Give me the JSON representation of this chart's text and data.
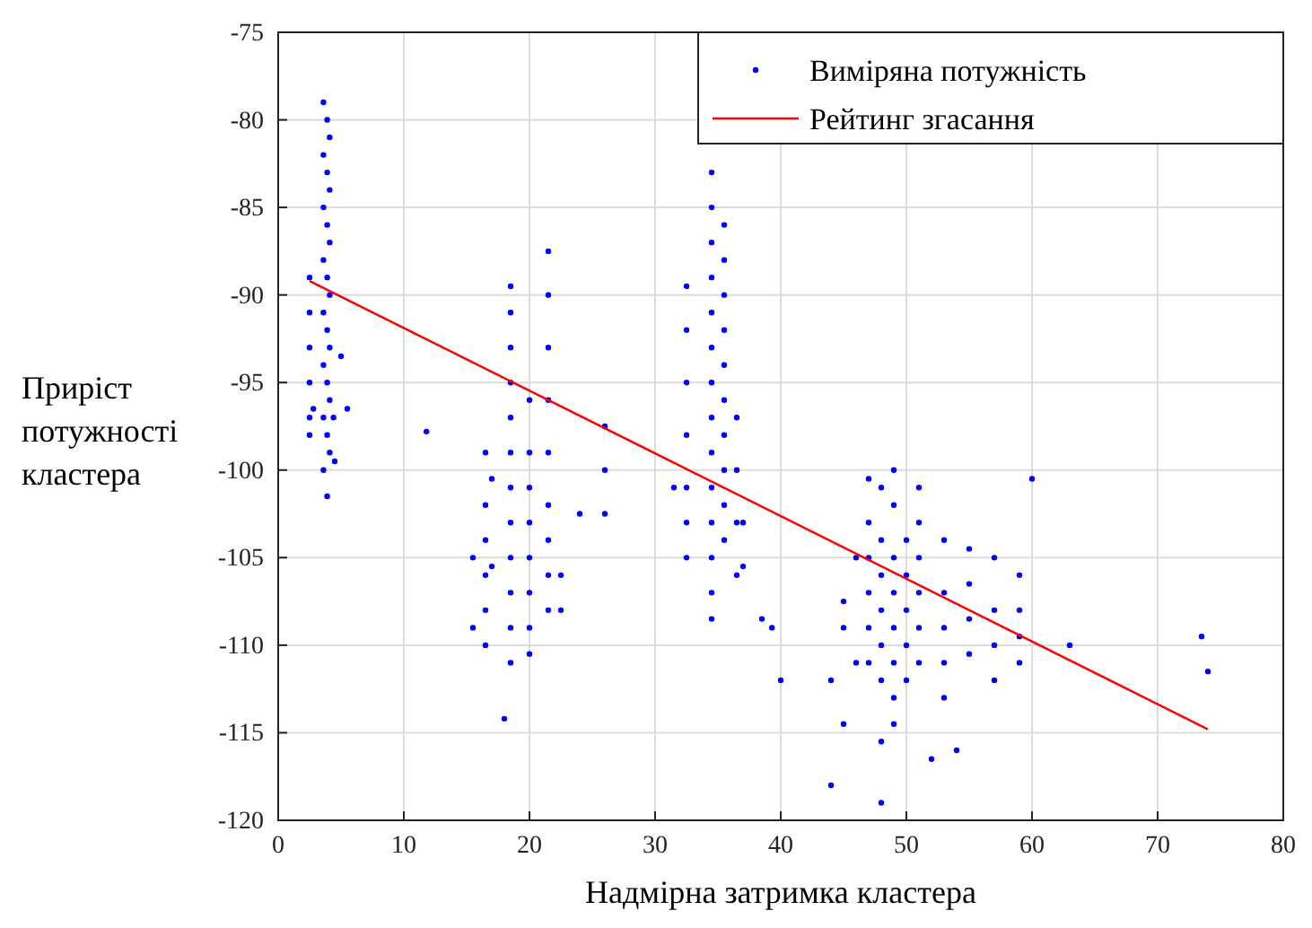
{
  "chart_data": {
    "type": "scatter",
    "xlabel": "Надмірна затримка кластера",
    "ylabel": "Приріст потужності кластера",
    "xlim": [
      0,
      80
    ],
    "xticks": [
      0,
      10,
      20,
      30,
      40,
      50,
      60,
      70,
      80
    ],
    "ylim": [
      -120,
      -75
    ],
    "yticks": [
      -120,
      -115,
      -110,
      -105,
      -100,
      -95,
      -90,
      -85,
      -80,
      -75
    ],
    "grid": true,
    "legend": "top right",
    "series": [
      {
        "name": "Виміряна потужність",
        "color": "#0000ff",
        "marker": "circle",
        "x": [
          3.6,
          3.9,
          4.1,
          3.6,
          3.9,
          4.1,
          3.6,
          3.9,
          4.1,
          3.6,
          3.9,
          4.1,
          3.6,
          3.9,
          4.1,
          3.6,
          3.9,
          4.1,
          3.6,
          3.9,
          4.1,
          3.6,
          3.9,
          2.5,
          2.5,
          2.5,
          2.5,
          2.5,
          2.5,
          2.8,
          5,
          5.5,
          4.5,
          4.4,
          18.5,
          18.5,
          18.5,
          18.5,
          18.5,
          18.5,
          18.5,
          18.5,
          18.5,
          18.5,
          18.5,
          18.5,
          18,
          16.5,
          16.5,
          16.5,
          16.5,
          16.5,
          16.5,
          17,
          17,
          20,
          20,
          20,
          20,
          20,
          20,
          20,
          20,
          21.5,
          21.5,
          21.5,
          21.5,
          21.5,
          21.5,
          21.5,
          21.5,
          21.5,
          22.5,
          22.5,
          15.5,
          15.5,
          26,
          26,
          26,
          24,
          11.8,
          32.5,
          32.5,
          32.5,
          32.5,
          32.5,
          32.5,
          32.5,
          34.5,
          34.5,
          34.5,
          34.5,
          34.5,
          34.5,
          34.5,
          34.5,
          34.5,
          34.5,
          34.5,
          34.5,
          34.5,
          34.5,
          35.5,
          35.5,
          35.5,
          35.5,
          35.5,
          35.5,
          35.5,
          35.5,
          35.5,
          35.5,
          36.5,
          36.5,
          36.5,
          36.5,
          37,
          37,
          38.5,
          39.3,
          40,
          31.5,
          47,
          47,
          47,
          47,
          47,
          47,
          48,
          48,
          48,
          48,
          48,
          48,
          48,
          48,
          49,
          49,
          49,
          49,
          49,
          49,
          49,
          49,
          50,
          50,
          50,
          50,
          50,
          51,
          51,
          51,
          51,
          51,
          51,
          45,
          45,
          45,
          46,
          46,
          53,
          53,
          53,
          53,
          53,
          55,
          55,
          55,
          55,
          57,
          57,
          57,
          57,
          59,
          59,
          59,
          59,
          60,
          63,
          73.5,
          74,
          52,
          54,
          44,
          44
        ],
        "values": [
          -79,
          -80,
          -81,
          -82,
          -83,
          -84,
          -85,
          -86,
          -87,
          -88,
          -89,
          -90,
          -91,
          -92,
          -93,
          -94,
          -95,
          -96,
          -97,
          -98,
          -99,
          -100,
          -101.5,
          -89,
          -91,
          -93,
          -95,
          -97,
          -98,
          -96.5,
          -93.5,
          -96.5,
          -99.5,
          -97,
          -89.5,
          -91,
          -93,
          -95,
          -97,
          -99,
          -101,
          -103,
          -105,
          -107,
          -109,
          -111,
          -114.2,
          -99,
          -102,
          -104,
          -106,
          -108,
          -110,
          -100.5,
          -105.5,
          -96,
          -99,
          -101,
          -103,
          -105,
          -107,
          -109,
          -110.5,
          -87.5,
          -90,
          -93,
          -96,
          -99,
          -102,
          -104,
          -106,
          -108,
          -106,
          -108,
          -105,
          -109,
          -97.5,
          -100,
          -102.5,
          -102.5,
          -97.8,
          -89.5,
          -92,
          -95,
          -98,
          -101,
          -103,
          -105,
          -83,
          -85,
          -87,
          -89,
          -91,
          -93,
          -95,
          -97,
          -99,
          -101,
          -103,
          -105,
          -107,
          -108.5,
          -86,
          -88,
          -90,
          -92,
          -94,
          -96,
          -98,
          -100,
          -102,
          -104,
          -97,
          -100,
          -103,
          -106,
          -103,
          -105.5,
          -108.5,
          -109,
          -112,
          -101,
          -100.5,
          -103,
          -105,
          -107,
          -109,
          -111,
          -101,
          -104,
          -106,
          -108,
          -110,
          -112,
          -115.5,
          -119,
          -100,
          -102,
          -105,
          -107,
          -109,
          -111,
          -113,
          -114.5,
          -104,
          -106,
          -108,
          -110,
          -112,
          -101,
          -103,
          -105,
          -107,
          -109,
          -111,
          -107.5,
          -109,
          -114.5,
          -105,
          -111,
          -104,
          -107,
          -109,
          -111,
          -113,
          -104.5,
          -106.5,
          -108.5,
          -110.5,
          -105,
          -108,
          -110,
          -112,
          -106,
          -108,
          -109.5,
          -111,
          -100.5,
          -110,
          -109.5,
          -111.5,
          -116.5,
          -116,
          -118,
          -112
        ]
      },
      {
        "name": "Рейтинг згасання",
        "color": "#ff0000",
        "type": "line",
        "x": [
          2.5,
          74
        ],
        "values": [
          -89.2,
          -114.8
        ]
      }
    ]
  }
}
